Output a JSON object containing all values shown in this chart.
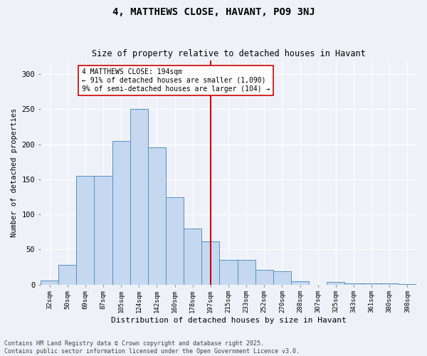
{
  "title": "4, MATTHEWS CLOSE, HAVANT, PO9 3NJ",
  "subtitle": "Size of property relative to detached houses in Havant",
  "xlabel": "Distribution of detached houses by size in Havant",
  "ylabel": "Number of detached properties",
  "bar_labels": [
    "32sqm",
    "50sqm",
    "69sqm",
    "87sqm",
    "105sqm",
    "124sqm",
    "142sqm",
    "160sqm",
    "178sqm",
    "197sqm",
    "215sqm",
    "233sqm",
    "252sqm",
    "270sqm",
    "288sqm",
    "307sqm",
    "325sqm",
    "343sqm",
    "361sqm",
    "380sqm",
    "398sqm"
  ],
  "bar_values": [
    6,
    28,
    155,
    155,
    205,
    250,
    196,
    125,
    80,
    62,
    35,
    35,
    21,
    19,
    5,
    0,
    4,
    2,
    2,
    2,
    1
  ],
  "bar_color": "#c5d8f0",
  "bar_edge_color": "#5590c0",
  "vline_x": 9.0,
  "vline_color": "#cc0000",
  "annotation_text": "4 MATTHEWS CLOSE: 194sqm\n← 91% of detached houses are smaller (1,090)\n9% of semi-detached houses are larger (104) →",
  "annotation_box_color": "#ffffff",
  "annotation_box_edge_color": "#cc0000",
  "ylim": [
    0,
    320
  ],
  "yticks": [
    0,
    50,
    100,
    150,
    200,
    250,
    300
  ],
  "background_color": "#eef2f8",
  "grid_color": "#ffffff",
  "footer_line1": "Contains HM Land Registry data © Crown copyright and database right 2025.",
  "footer_line2": "Contains public sector information licensed under the Open Government Licence v3.0."
}
